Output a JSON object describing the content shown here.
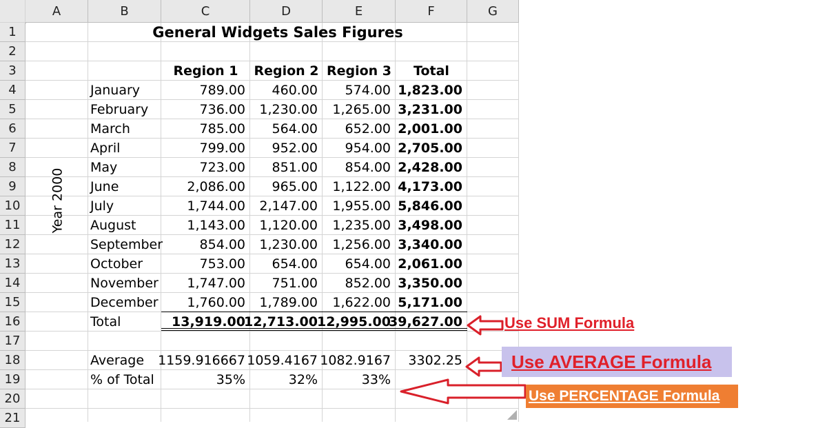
{
  "columns": [
    "A",
    "B",
    "C",
    "D",
    "E",
    "F",
    "G"
  ],
  "rows": [
    "1",
    "2",
    "3",
    "4",
    "5",
    "6",
    "7",
    "8",
    "9",
    "10",
    "11",
    "12",
    "13",
    "14",
    "15",
    "16",
    "17",
    "18",
    "19",
    "20",
    "21"
  ],
  "sheet": {
    "title": "General Widgets Sales Figures",
    "vertical_label": "Year 2000",
    "headers": [
      "Region 1",
      "Region 2",
      "Region 3",
      "Total"
    ],
    "months": [
      {
        "name": "January",
        "r1": "789.00",
        "r2": "460.00",
        "r3": "574.00",
        "total": "1,823.00"
      },
      {
        "name": "February",
        "r1": "736.00",
        "r2": "1,230.00",
        "r3": "1,265.00",
        "total": "3,231.00"
      },
      {
        "name": "March",
        "r1": "785.00",
        "r2": "564.00",
        "r3": "652.00",
        "total": "2,001.00"
      },
      {
        "name": "April",
        "r1": "799.00",
        "r2": "952.00",
        "r3": "954.00",
        "total": "2,705.00"
      },
      {
        "name": "May",
        "r1": "723.00",
        "r2": "851.00",
        "r3": "854.00",
        "total": "2,428.00"
      },
      {
        "name": "June",
        "r1": "2,086.00",
        "r2": "965.00",
        "r3": "1,122.00",
        "total": "4,173.00"
      },
      {
        "name": "July",
        "r1": "1,744.00",
        "r2": "2,147.00",
        "r3": "1,955.00",
        "total": "5,846.00"
      },
      {
        "name": "August",
        "r1": "1,143.00",
        "r2": "1,120.00",
        "r3": "1,235.00",
        "total": "3,498.00"
      },
      {
        "name": "September",
        "r1": "854.00",
        "r2": "1,230.00",
        "r3": "1,256.00",
        "total": "3,340.00"
      },
      {
        "name": "October",
        "r1": "753.00",
        "r2": "654.00",
        "r3": "654.00",
        "total": "2,061.00"
      },
      {
        "name": "November",
        "r1": "1,747.00",
        "r2": "751.00",
        "r3": "852.00",
        "total": "3,350.00"
      },
      {
        "name": "December",
        "r1": "1,760.00",
        "r2": "1,789.00",
        "r3": "1,622.00",
        "total": "5,171.00"
      }
    ],
    "total_row": {
      "label": "Total",
      "r1": "13,919.00",
      "r2": "12,713.00",
      "r3": "12,995.00",
      "total": "39,627.00"
    },
    "average_row": {
      "label": "Average",
      "r1": "1159.916667",
      "r2": "1059.4167",
      "r3": "1082.9167",
      "total": "3302.25"
    },
    "percent_row": {
      "label": "% of Total",
      "r1": "35%",
      "r2": "32%",
      "r3": "33%"
    }
  },
  "annotations": {
    "sum": "Use SUM Formula",
    "average": "Use AVERAGE Formula",
    "percentage": "Use PERCENTAGE Formula",
    "colors": {
      "text_red": "#e0202a",
      "avg_bg": "#c8c2ec",
      "pct_bg": "#ef7e32",
      "arrow_red": "#d9202a"
    }
  }
}
